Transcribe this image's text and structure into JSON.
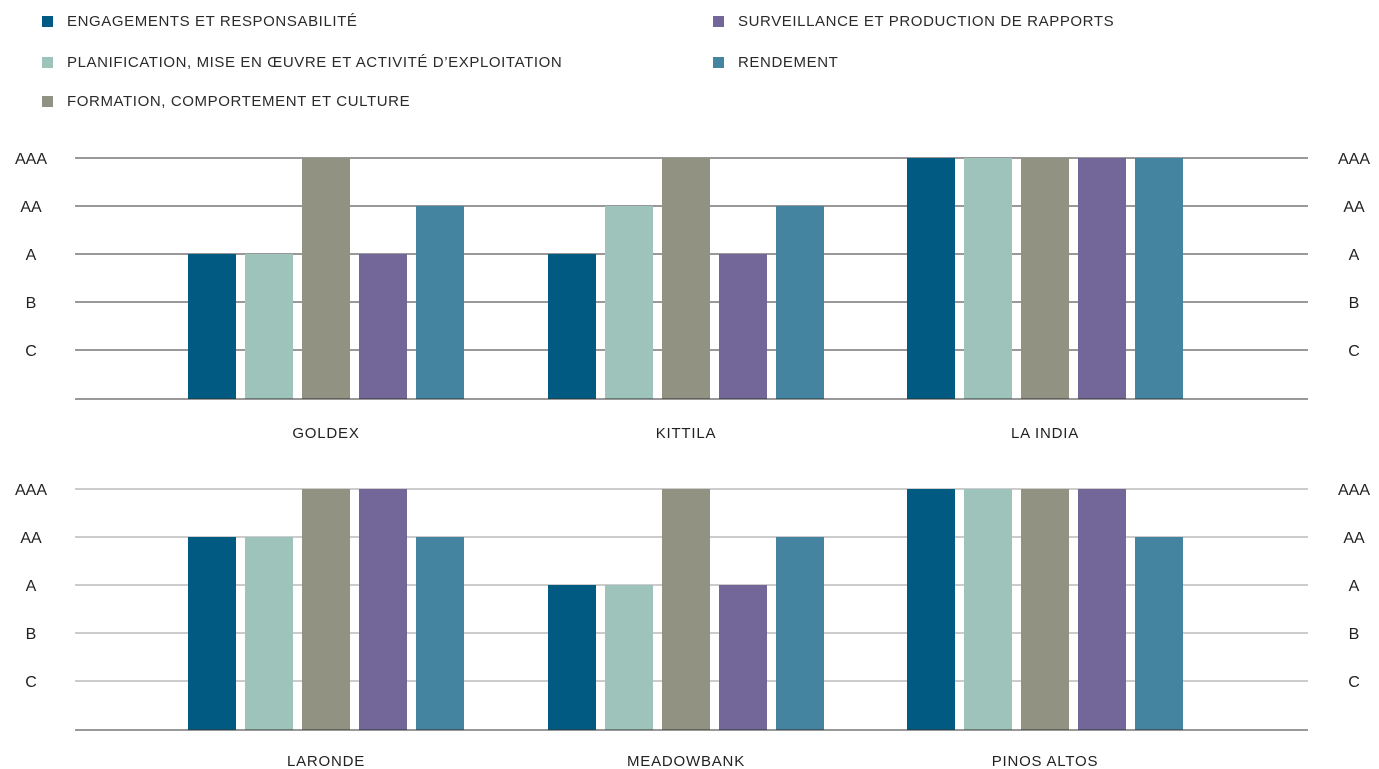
{
  "chart_data": {
    "type": "bar",
    "levels": [
      "C",
      "B",
      "A",
      "AA",
      "AAA"
    ],
    "legend_position": "top",
    "grid": true,
    "series_order": [
      {
        "name": "ENGAGEMENTS ET RESPONSABILITÉ",
        "color": "#005A82"
      },
      {
        "name": "PLANIFICATION, MISE EN ŒUVRE ET ACTIVITÉ D’EXPLOITATION",
        "color": "#9DC3BA"
      },
      {
        "name": "FORMATION, COMPORTEMENT ET CULTURE",
        "color": "#919281"
      },
      {
        "name": "SURVEILLANCE ET PRODUCTION DE RAPPORTS",
        "color": "#726798"
      },
      {
        "name": "RENDEMENT",
        "color": "#4484A1"
      }
    ],
    "panels": [
      {
        "categories": [
          "GOLDEX",
          "KITTILA",
          "LA INDIA"
        ],
        "values": [
          [
            "A",
            "A",
            "AAA",
            "A",
            "AA"
          ],
          [
            "A",
            "AA",
            "AAA",
            "A",
            "AA"
          ],
          [
            "AAA",
            "AAA",
            "AAA",
            "AAA",
            "AAA"
          ]
        ]
      },
      {
        "categories": [
          "LARONDE",
          "MEADOWBANK",
          "PINOS ALTOS"
        ],
        "values": [
          [
            "AA",
            "AA",
            "AAA",
            "AAA",
            "AA"
          ],
          [
            "A",
            "A",
            "AAA",
            "A",
            "AA"
          ],
          [
            "AAA",
            "AAA",
            "AAA",
            "AAA",
            "AA"
          ]
        ]
      }
    ]
  }
}
